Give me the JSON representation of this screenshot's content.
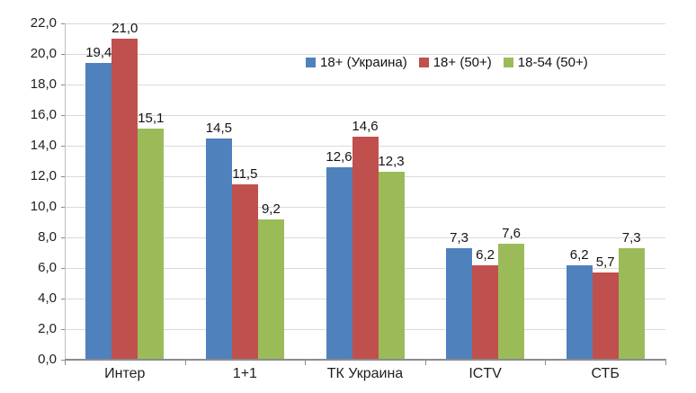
{
  "chart_data": {
    "type": "bar",
    "title": "",
    "xlabel": "",
    "ylabel": "",
    "categories": [
      "Интер",
      "1+1",
      "ТК Украина",
      "ICTV",
      "СТБ"
    ],
    "series": [
      {
        "name": "18+ (Украина)",
        "color": "#4F81BD",
        "values": [
          19.4,
          14.5,
          12.6,
          7.3,
          6.2
        ],
        "value_labels": [
          "19,4",
          "14,5",
          "12,6",
          "7,3",
          "6,2"
        ]
      },
      {
        "name": "18+ (50+)",
        "color": "#C0504D",
        "values": [
          21.0,
          11.5,
          14.6,
          6.2,
          5.7
        ],
        "value_labels": [
          "21,0",
          "11,5",
          "14,6",
          "6,2",
          "5,7"
        ]
      },
      {
        "name": "18-54 (50+)",
        "color": "#9BBB59",
        "values": [
          15.1,
          9.2,
          12.3,
          7.6,
          7.3
        ],
        "value_labels": [
          "15,1",
          "9,2",
          "12,3",
          "7,6",
          "7,3"
        ]
      }
    ],
    "ylim": [
      0,
      22
    ],
    "ytick_step": 2,
    "ytick_labels": [
      "0,0",
      "2,0",
      "4,0",
      "6,0",
      "8,0",
      "10,0",
      "12,0",
      "14,0",
      "16,0",
      "18,0",
      "20,0",
      "22,0"
    ],
    "grid": true,
    "legend_position": "top-inside-horizontal",
    "colors": {
      "gridline": "#D9D9D9",
      "y_axis_line": "#BFBFBF",
      "x_axis_line": "#8C8C8C",
      "tick": "#8C8C8C",
      "text": "#1F1F1F",
      "background": "#FFFFFF"
    }
  }
}
